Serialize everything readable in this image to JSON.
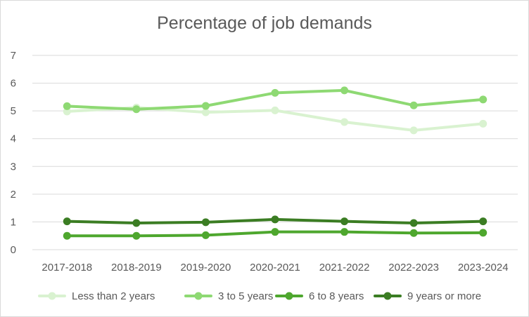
{
  "chart_data": {
    "type": "line",
    "title": "Percentage of job demands",
    "categories": [
      "2017-2018",
      "2018-2019",
      "2019-2020",
      "2020-2021",
      "2021-2022",
      "2022-2023",
      "2023-2024"
    ],
    "ylim": [
      0,
      7
    ],
    "yticks": [
      "0",
      "1",
      "2",
      "3",
      "4",
      "5",
      "6",
      "7"
    ],
    "grid": true,
    "legend": "bottom",
    "series": [
      {
        "name": "Less than 2 years",
        "color": "#d9f2d0",
        "values": [
          4.98,
          5.12,
          4.95,
          5.02,
          4.6,
          4.3,
          4.54
        ]
      },
      {
        "name": "3 to 5 years",
        "color": "#8ed973",
        "values": [
          5.17,
          5.06,
          5.18,
          5.65,
          5.74,
          5.2,
          5.41
        ]
      },
      {
        "name": "6 to 8 years",
        "color": "#4ea72e",
        "values": [
          0.5,
          0.5,
          0.52,
          0.64,
          0.64,
          0.6,
          0.61
        ]
      },
      {
        "name": "9 years or more",
        "color": "#3b7d23",
        "values": [
          1.02,
          0.96,
          0.99,
          1.09,
          1.02,
          0.96,
          1.02
        ]
      }
    ]
  }
}
